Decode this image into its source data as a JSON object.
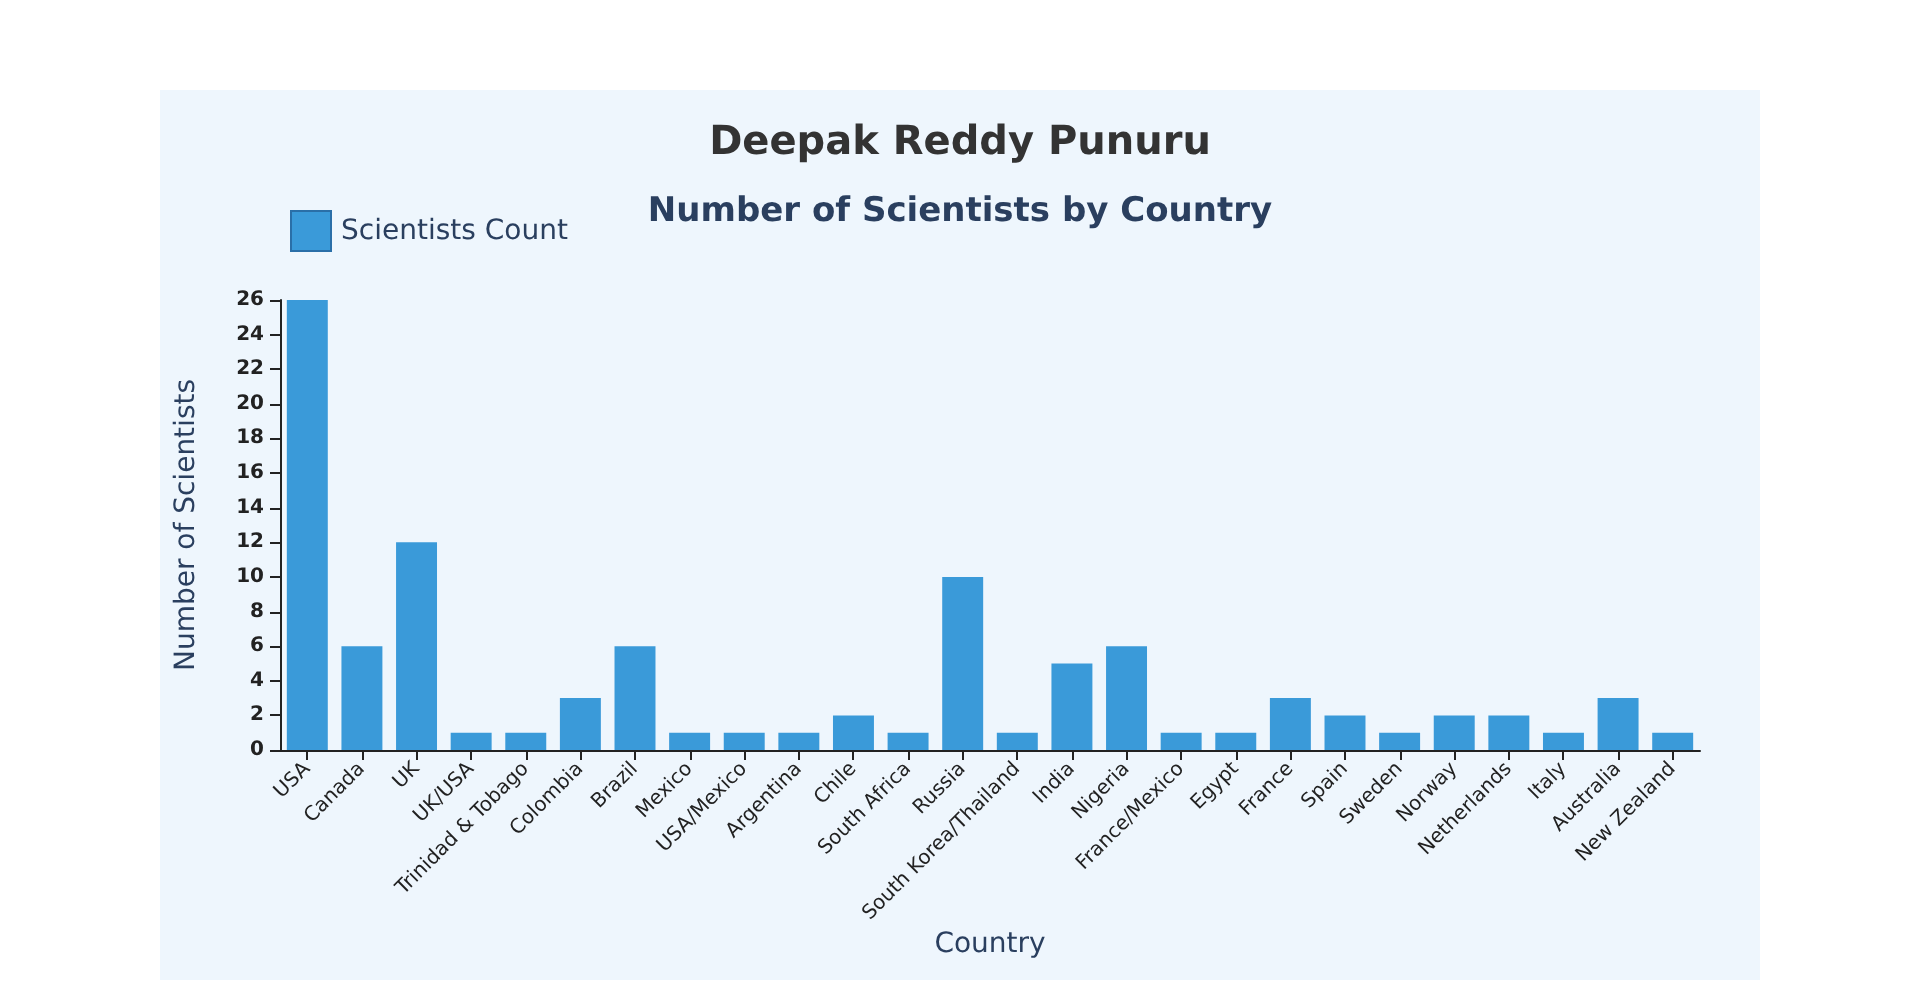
{
  "chart_data": {
    "type": "bar",
    "title": "Deepak Reddy Punuru",
    "subtitle": "Number of Scientists by Country",
    "xlabel": "Country",
    "ylabel": "Number of Scientists",
    "categories": [
      "USA",
      "Canada",
      "UK",
      "UK/USA",
      "Trinidad & Tobago",
      "Colombia",
      "Brazil",
      "Mexico",
      "USA/Mexico",
      "Argentina",
      "Chile",
      "South Africa",
      "Russia",
      "South Korea/Thailand",
      "India",
      "Nigeria",
      "France/Mexico",
      "Egypt",
      "France",
      "Spain",
      "Sweden",
      "Norway",
      "Netherlands",
      "Italy",
      "Australia",
      "New Zealand"
    ],
    "series": [
      {
        "name": "Scientists Count",
        "color": "#3a9ad9",
        "values": [
          26,
          6,
          12,
          1,
          1,
          3,
          6,
          1,
          1,
          1,
          2,
          1,
          10,
          1,
          5,
          6,
          1,
          1,
          3,
          2,
          1,
          2,
          2,
          1,
          3,
          1
        ]
      }
    ],
    "ylim": [
      0,
      26
    ],
    "yticks": [
      0,
      2,
      4,
      6,
      8,
      10,
      12,
      14,
      16,
      18,
      20,
      22,
      24,
      26
    ],
    "grid": false,
    "legend": "top left"
  }
}
